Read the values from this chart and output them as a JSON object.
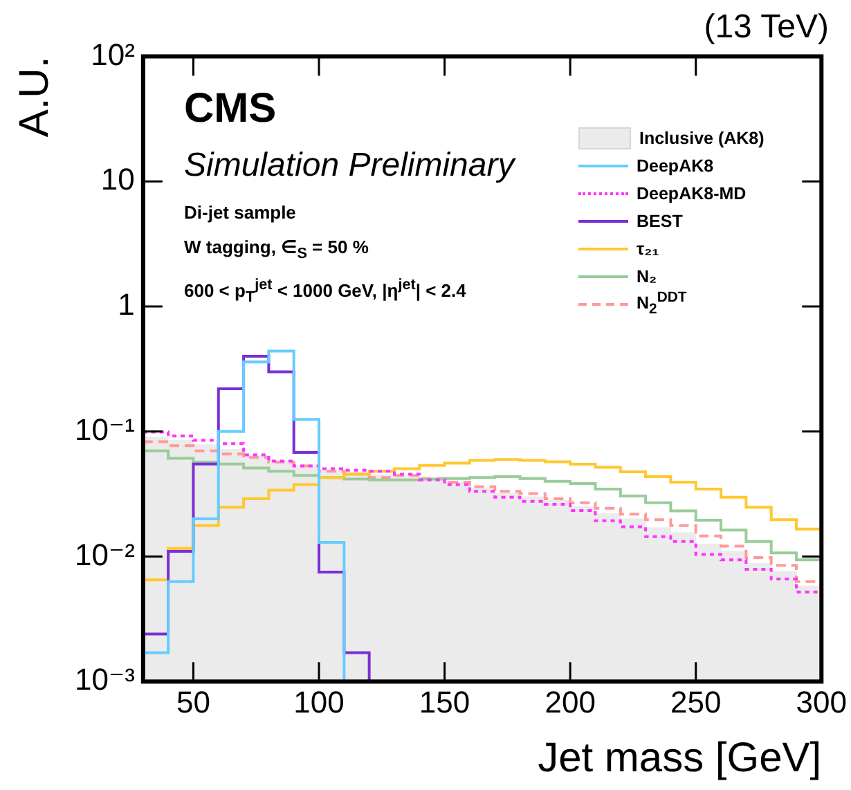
{
  "chart_data": {
    "type": "histogram",
    "title": "(13 TeV)",
    "xlabel": "Jet mass [GeV]",
    "ylabel": "A.U.",
    "annotations": [
      "CMS",
      "Simulation Preliminary",
      "Di-jet sample",
      "W tagging, ∈$_{S}$ = 50 %",
      "600 < p$_{T}$$^{jet}$ < 1000 GeV, |η$^{jet}$| < 2.4"
    ],
    "bins": [
      30,
      40,
      50,
      60,
      70,
      80,
      90,
      100,
      110,
      120,
      130,
      140,
      150,
      160,
      170,
      180,
      190,
      200,
      210,
      220,
      230,
      240,
      250,
      260,
      270,
      280,
      290,
      300
    ],
    "series": [
      {
        "name": "Inclusive (AK8)",
        "color": "#ebebeb",
        "values": [
          0.09,
          0.085,
          0.078,
          0.072,
          0.064,
          0.058,
          0.053,
          0.049,
          0.047,
          0.045,
          0.044,
          0.042,
          0.039,
          0.035,
          0.032,
          0.03,
          0.028,
          0.025,
          0.022,
          0.02,
          0.017,
          0.0155,
          0.0125,
          0.011,
          0.0088,
          0.0076,
          0.0058
        ]
      },
      {
        "name": "DeepAK8",
        "line_style": "solid",
        "color": "#66ccff",
        "values": [
          0.0017,
          0.0063,
          0.02,
          0.1,
          0.36,
          0.44,
          0.125,
          0.013,
          null,
          null,
          null,
          null,
          null,
          null,
          null,
          null,
          null,
          null,
          null,
          null,
          null,
          null,
          null,
          null,
          null,
          null,
          null
        ]
      },
      {
        "name": "DeepAK8-MD",
        "color": "#ff33ff",
        "line_style": "dotted",
        "values": [
          0.099,
          0.092,
          0.085,
          0.08,
          0.065,
          0.058,
          0.053,
          0.0505,
          0.049,
          0.048,
          0.0456,
          0.041,
          0.0376,
          0.0332,
          0.0298,
          0.0276,
          0.0262,
          0.0233,
          0.0193,
          0.0173,
          0.0144,
          0.0132,
          0.0104,
          0.0094,
          0.0079,
          0.0066,
          0.0052
        ]
      },
      {
        "name": "BEST",
        "line_style": "solid",
        "color": "#7a2fd6",
        "values": [
          0.0024,
          0.011,
          0.055,
          0.22,
          0.4,
          0.3,
          0.068,
          0.0075,
          0.0017,
          null,
          null,
          null,
          null,
          null,
          null,
          null,
          null,
          null,
          null,
          null,
          null,
          null,
          null,
          null,
          null,
          null,
          null
        ]
      },
      {
        "name": "τ₂₁",
        "line_style": "solid",
        "color": "#ffc82e",
        "values": [
          0.0065,
          0.0116,
          0.0177,
          0.0248,
          0.029,
          0.034,
          0.0376,
          0.0428,
          0.0455,
          0.048,
          0.0505,
          0.0535,
          0.0558,
          0.0587,
          0.0597,
          0.0587,
          0.0573,
          0.0548,
          0.0517,
          0.0476,
          0.0435,
          0.0393,
          0.0346,
          0.0298,
          0.0248,
          0.0197,
          0.0166
        ]
      },
      {
        "name": "N₂",
        "line_style": "solid",
        "color": "#99cc99",
        "values": [
          0.07,
          0.061,
          0.057,
          0.055,
          0.051,
          0.048,
          0.0445,
          0.0428,
          0.0416,
          0.041,
          0.041,
          0.0416,
          0.042,
          0.0428,
          0.0435,
          0.042,
          0.04,
          0.0383,
          0.0346,
          0.0305,
          0.0269,
          0.0232,
          0.0195,
          0.0163,
          0.0132,
          0.0107,
          0.0094
        ]
      },
      {
        "name": "N$_{2}$$^{DDT}$",
        "color": "#ff9999",
        "line_style": "dashed",
        "values": [
          0.083,
          0.077,
          0.07,
          0.066,
          0.062,
          0.057,
          0.053,
          0.048,
          0.0455,
          0.0428,
          0.0445,
          0.042,
          0.0393,
          0.0362,
          0.0332,
          0.0319,
          0.029,
          0.0269,
          0.0243,
          0.0218,
          0.0197,
          0.0177,
          0.0146,
          0.0121,
          0.0098,
          0.0085,
          0.0063
        ]
      }
    ],
    "log": "y",
    "legend": "top right",
    "grid": false,
    "xlim": [
      30,
      300
    ],
    "xticks": [
      50,
      100,
      150,
      200,
      250,
      300
    ],
    "ylim": [
      0.001,
      100
    ],
    "yticks": [
      {
        "value": 0.001,
        "label": "10⁻³"
      },
      {
        "value": 0.01,
        "label": "10⁻²"
      },
      {
        "value": 0.1,
        "label": "10⁻¹"
      },
      1,
      10,
      {
        "value": 100,
        "label": "10²"
      }
    ]
  }
}
